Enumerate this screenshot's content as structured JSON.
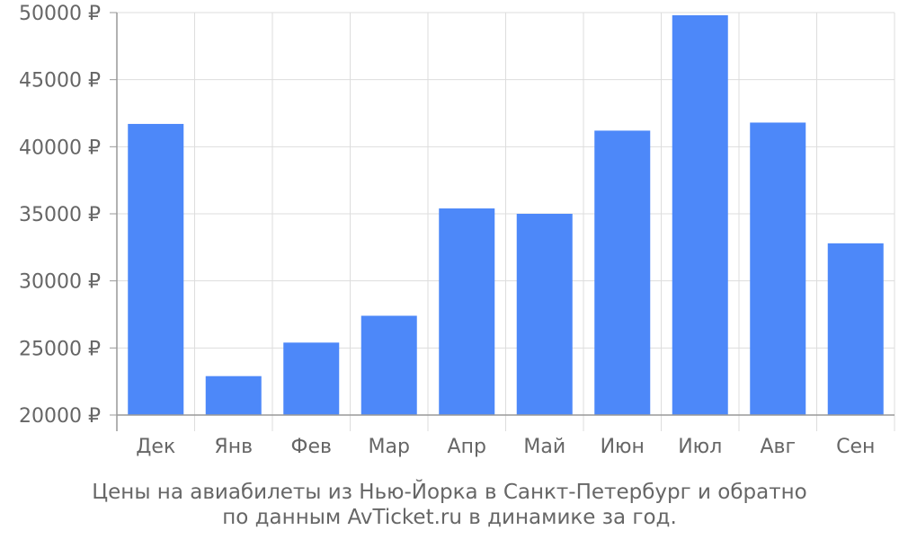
{
  "caption": {
    "line1": "Цены на авиабилеты из Нью-Йорка в Санкт-Петербург и обратно",
    "line2": "по данным AvTicket.ru в динамике за год."
  },
  "chart_data": {
    "type": "bar",
    "categories": [
      "Дек",
      "Янв",
      "Фев",
      "Мар",
      "Апр",
      "Май",
      "Июн",
      "Июл",
      "Авг",
      "Сен"
    ],
    "values": [
      41700,
      22900,
      25400,
      27400,
      35400,
      35000,
      41200,
      49800,
      41800,
      32800
    ],
    "ylim": [
      20000,
      50000
    ],
    "yticks": [
      20000,
      25000,
      30000,
      35000,
      40000,
      45000,
      50000
    ],
    "ytick_labels": [
      "20000 ₽",
      "25000 ₽",
      "30000 ₽",
      "35000 ₽",
      "40000 ₽",
      "45000 ₽",
      "50000 ₽"
    ],
    "grid": true,
    "legend": "none",
    "colors": {
      "bar": "#4d88f9",
      "grid": "#dddddd",
      "axis": "#999999",
      "text": "#666666"
    }
  }
}
